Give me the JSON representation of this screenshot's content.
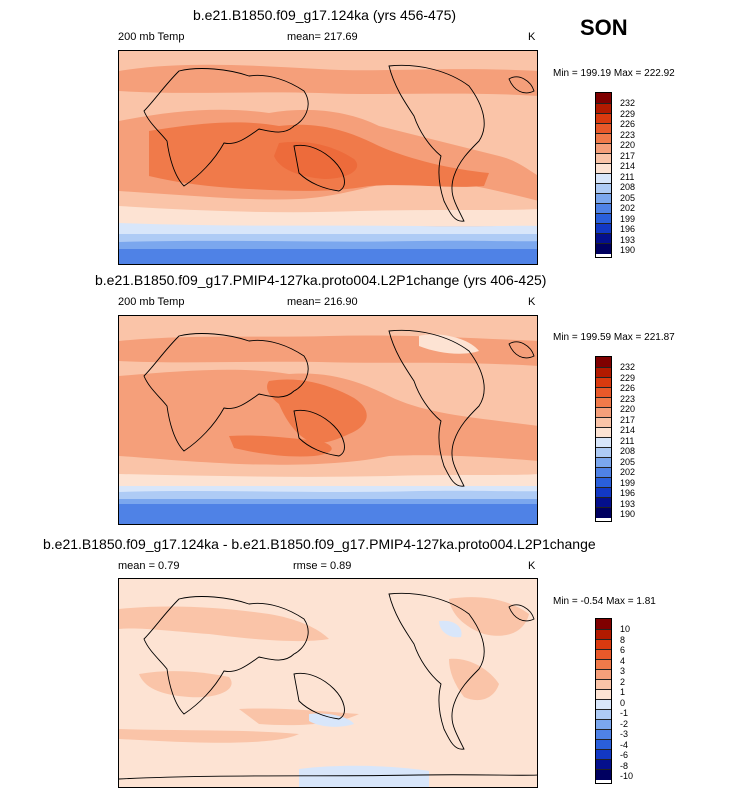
{
  "season": "SON",
  "units": "K",
  "panels": [
    {
      "title": "b.e21.B1850.f09_g17.124ka (yrs 456-475)",
      "left_label": "200 mb Temp",
      "center_label": "mean= 217.69",
      "right_label": "K",
      "minmax": "Min = 199.19 Max = 222.92",
      "levels": [
        "232",
        "229",
        "226",
        "223",
        "220",
        "217",
        "214",
        "211",
        "208",
        "205",
        "202",
        "199",
        "196",
        "193",
        "190"
      ]
    },
    {
      "title": "b.e21.B1850.f09_g17.PMIP4-127ka.proto004.L2P1change (yrs 406-425)",
      "left_label": "200 mb Temp",
      "center_label": "mean= 216.90",
      "right_label": "K",
      "minmax": "Min = 199.59 Max = 221.87",
      "levels": [
        "232",
        "229",
        "226",
        "223",
        "220",
        "217",
        "214",
        "211",
        "208",
        "205",
        "202",
        "199",
        "196",
        "193",
        "190"
      ]
    },
    {
      "title": "b.e21.B1850.f09_g17.124ka - b.e21.B1850.f09_g17.PMIP4-127ka.proto004.L2P1change",
      "left_label": "mean =   0.79",
      "center_label": "rmse =   0.89",
      "right_label": "K",
      "minmax": "Min =  -0.54 Max =   1.81",
      "levels": [
        "10",
        "8",
        "6",
        "4",
        "3",
        "2",
        "1",
        "0",
        "-1",
        "-2",
        "-3",
        "-4",
        "-6",
        "-8",
        "-10"
      ]
    }
  ],
  "colors": {
    "scale": [
      "#7f0000",
      "#b21a00",
      "#d93a0f",
      "#e8592a",
      "#f07a4a",
      "#f59f7a",
      "#fac4a8",
      "#fde3d3",
      "#d8e6fa",
      "#aecbf5",
      "#7ba7ee",
      "#4f82e6",
      "#2a5fdb",
      "#1238c4",
      "#040f8c",
      "#000060"
    ]
  },
  "chart_data": [
    {
      "type": "heatmap",
      "title": "b.e21.B1850.f09_g17.124ka (yrs 456-475)",
      "variable": "200 mb Temp",
      "units": "K",
      "mean": 217.69,
      "min": 199.19,
      "max": 222.92,
      "contour_levels": [
        190,
        193,
        196,
        199,
        202,
        205,
        208,
        211,
        214,
        217,
        220,
        223,
        226,
        229,
        232
      ]
    },
    {
      "type": "heatmap",
      "title": "b.e21.B1850.f09_g17.PMIP4-127ka.proto004.L2P1change (yrs 406-425)",
      "variable": "200 mb Temp",
      "units": "K",
      "mean": 216.9,
      "min": 199.59,
      "max": 221.87,
      "contour_levels": [
        190,
        193,
        196,
        199,
        202,
        205,
        208,
        211,
        214,
        217,
        220,
        223,
        226,
        229,
        232
      ]
    },
    {
      "type": "heatmap",
      "title": "b.e21.B1850.f09_g17.124ka - b.e21.B1850.f09_g17.PMIP4-127ka.proto004.L2P1change",
      "variable": "difference",
      "units": "K",
      "mean": 0.79,
      "rmse": 0.89,
      "min": -0.54,
      "max": 1.81,
      "contour_levels": [
        -10,
        -8,
        -6,
        -4,
        -3,
        -2,
        -1,
        0,
        1,
        2,
        3,
        4,
        6,
        8,
        10
      ]
    }
  ]
}
